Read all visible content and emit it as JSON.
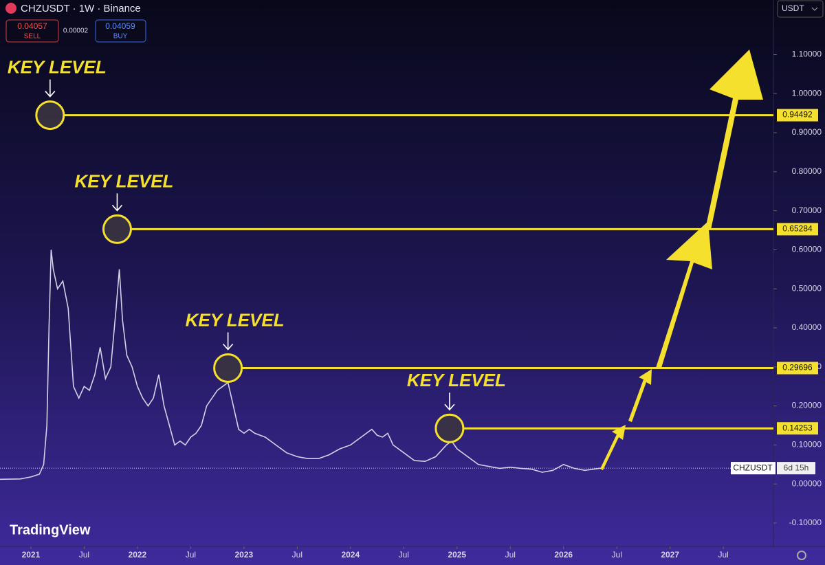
{
  "header": {
    "symbol": "CHZUSDT · 1W · Binance",
    "sell": 0.04057,
    "sell_label": "SELL",
    "spread": 2e-05,
    "buy": 0.04059,
    "buy_label": "BUY",
    "currency": "USDT"
  },
  "brand": "TradingView",
  "chart_data": {
    "type": "line",
    "series": [
      {
        "name": "CHZUSDT",
        "color": "#d4d2e6",
        "x": [
          2020.71,
          2020.9,
          2021.0,
          2021.08,
          2021.12,
          2021.15,
          2021.17,
          2021.19,
          2021.21,
          2021.25,
          2021.3,
          2021.35,
          2021.4,
          2021.45,
          2021.5,
          2021.55,
          2021.6,
          2021.65,
          2021.7,
          2021.75,
          2021.8,
          2021.83,
          2021.86,
          2021.9,
          2021.95,
          2022.0,
          2022.05,
          2022.1,
          2022.15,
          2022.2,
          2022.25,
          2022.3,
          2022.35,
          2022.4,
          2022.45,
          2022.5,
          2022.55,
          2022.6,
          2022.65,
          2022.7,
          2022.75,
          2022.8,
          2022.85,
          2022.9,
          2022.95,
          2023.0,
          2023.05,
          2023.1,
          2023.2,
          2023.3,
          2023.4,
          2023.5,
          2023.6,
          2023.7,
          2023.8,
          2023.9,
          2024.0,
          2024.1,
          2024.2,
          2024.25,
          2024.3,
          2024.35,
          2024.4,
          2024.5,
          2024.6,
          2024.7,
          2024.8,
          2024.9,
          2024.95,
          2025.0,
          2025.1,
          2025.2,
          2025.3,
          2025.4,
          2025.5,
          2025.6,
          2025.7,
          2025.8,
          2025.9,
          2026.0,
          2026.1,
          2026.2,
          2026.35
        ],
        "values": [
          0.012,
          0.013,
          0.018,
          0.025,
          0.05,
          0.15,
          0.4,
          0.6,
          0.55,
          0.5,
          0.52,
          0.45,
          0.25,
          0.22,
          0.25,
          0.24,
          0.28,
          0.35,
          0.27,
          0.3,
          0.45,
          0.55,
          0.42,
          0.33,
          0.3,
          0.25,
          0.22,
          0.2,
          0.22,
          0.28,
          0.2,
          0.15,
          0.1,
          0.11,
          0.1,
          0.12,
          0.13,
          0.15,
          0.2,
          0.22,
          0.24,
          0.25,
          0.26,
          0.2,
          0.14,
          0.13,
          0.14,
          0.13,
          0.12,
          0.1,
          0.08,
          0.07,
          0.065,
          0.065,
          0.075,
          0.09,
          0.1,
          0.12,
          0.14,
          0.125,
          0.12,
          0.13,
          0.1,
          0.08,
          0.06,
          0.058,
          0.07,
          0.1,
          0.11,
          0.09,
          0.07,
          0.05,
          0.045,
          0.04,
          0.043,
          0.04,
          0.038,
          0.03,
          0.035,
          0.05,
          0.04,
          0.035,
          0.04057
        ]
      }
    ],
    "last_value": 0.04057,
    "countdown": "6d 15h",
    "key_levels": {
      "label": "KEY LEVEL",
      "color": "#f5e12d",
      "x": [
        2021.18,
        2021.81,
        2022.85,
        2024.93
      ],
      "values": [
        0.94492,
        0.65284,
        0.29696,
        0.14253
      ]
    },
    "xlim": [
      2020.71,
      2027.97
    ],
    "xticks": [
      2021,
      {
        "value": 2021.5,
        "label": "Jul"
      },
      2022,
      {
        "value": 2022.5,
        "label": "Jul"
      },
      2023,
      {
        "value": 2023.5,
        "label": "Jul"
      },
      2024,
      {
        "value": 2024.5,
        "label": "Jul"
      },
      2025,
      {
        "value": 2025.5,
        "label": "Jul"
      },
      2026,
      {
        "value": 2026.5,
        "label": "Jul"
      },
      2027,
      {
        "value": 2027.5,
        "label": "Jul"
      }
    ],
    "ylim": [
      -0.16,
      1.24
    ],
    "yticks": [
      {
        "value": -0.1,
        "label": "-0.10000"
      },
      {
        "value": 0,
        "label": "0.00000"
      },
      {
        "value": 0.1,
        "label": "0.10000"
      },
      {
        "value": 0.2,
        "label": "0.20000"
      },
      {
        "value": 0.3,
        "label": "0.30000"
      },
      {
        "value": 0.4,
        "label": "0.40000"
      },
      {
        "value": 0.5,
        "label": "0.50000"
      },
      {
        "value": 0.6,
        "label": "0.60000"
      },
      {
        "value": 0.7,
        "label": "0.70000"
      },
      {
        "value": 0.8,
        "label": "0.80000"
      },
      {
        "value": 0.9,
        "label": "0.90000"
      },
      {
        "value": 1.0,
        "label": "1.00000"
      },
      {
        "value": 1.1,
        "label": "1.10000"
      }
    ]
  }
}
